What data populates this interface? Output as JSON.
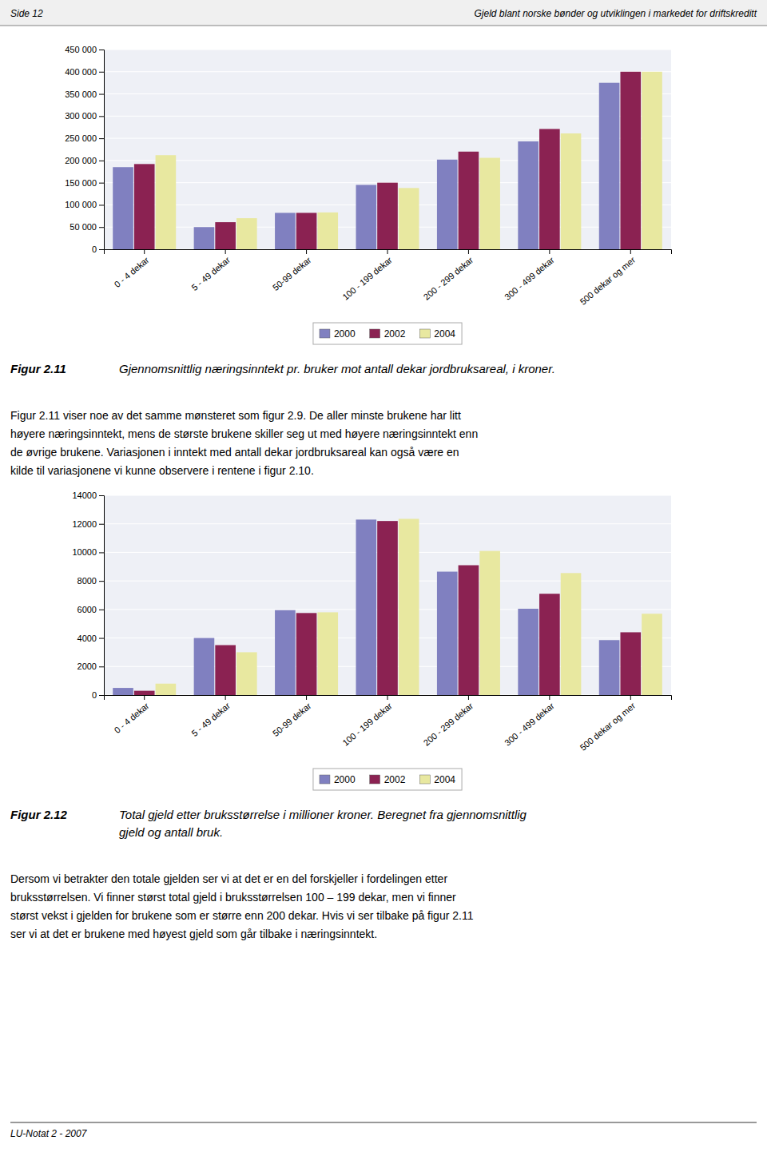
{
  "page": {
    "header_left": "Side 12",
    "header_right": "Gjeld blant norske bønder og utviklingen i markedet for driftskreditt",
    "footer": "LU-Notat 2 - 2007"
  },
  "chart_data": [
    {
      "type": "bar",
      "title": "Figur 2.11",
      "subtitle": [
        "Gjennomsnittlig næringsinntekt pr. bruker mot antall dekar jordbruksareal, i kroner."
      ],
      "annotations": [
        "Figur 2.11 viser noe av det samme mønsteret som figur 2.9. De aller minste brukene har litt",
        "høyere næringsinntekt, mens de største brukene skiller seg ut med høyere næringsinntekt enn",
        "de øvrige brukene. Variasjonen i inntekt med antall dekar jordbruksareal kan også være en",
        "kilde til variasjonene vi kunne observere i rentene i figur 2.10."
      ],
      "categories": [
        "0 - 4 dekar",
        "5 - 49 dekar",
        "50-99 dekar",
        "100 - 199 dekar",
        "200 - 299 dekar",
        "300 - 499 dekar",
        "500 dekar og mer"
      ],
      "series": [
        {
          "name": "2000",
          "color": "#8080c0",
          "values": [
            185000,
            50000,
            82000,
            145000,
            202000,
            243000,
            375000
          ]
        },
        {
          "name": "2002",
          "color": "#8b2252",
          "values": [
            192000,
            61000,
            82000,
            150000,
            220000,
            271000,
            400000
          ]
        },
        {
          "name": "2004",
          "color": "#e8e8a0",
          "values": [
            212000,
            70000,
            83000,
            138000,
            206000,
            261000,
            400000
          ]
        }
      ],
      "ylim": [
        0,
        450000
      ],
      "yticks": [
        0,
        {
          "value": 50000,
          "label": "50 000"
        },
        {
          "value": 100000,
          "label": "100 000"
        },
        {
          "value": 150000,
          "label": "150 000"
        },
        {
          "value": 200000,
          "label": "200 000"
        },
        {
          "value": 250000,
          "label": "250 000"
        },
        {
          "value": 300000,
          "label": "300 000"
        },
        {
          "value": 350000,
          "label": "350 000"
        },
        {
          "value": 400000,
          "label": "400 000"
        },
        {
          "value": 450000,
          "label": "450 000"
        }
      ],
      "grid": true,
      "legend": "bottom"
    },
    {
      "type": "bar",
      "title": "Figur 2.12",
      "subtitle": [
        "Total gjeld etter bruksstørrelse i millioner kroner. Beregnet fra gjennomsnittlig",
        "gjeld og antall bruk."
      ],
      "annotations": [
        "Dersom vi betrakter den totale gjelden ser vi at det er en del forskjeller i fordelingen etter",
        "bruksstørrelsen. Vi finner størst total gjeld i bruksstørrelsen 100 – 199 dekar, men vi finner",
        "størst vekst i gjelden for brukene som er større enn 200 dekar. Hvis vi ser tilbake på figur 2.11",
        "ser vi at det er brukene med høyest gjeld som går tilbake i næringsinntekt."
      ],
      "categories": [
        "0 - 4 dekar",
        "5 - 49 dekar",
        "50-99 dekar",
        "100 - 199 dekar",
        "200 - 299 dekar",
        "300 - 499 dekar",
        "500 dekar og mer"
      ],
      "series": [
        {
          "name": "2000",
          "color": "#8080c0",
          "values": [
            500,
            4000,
            5950,
            12300,
            8650,
            6050,
            3850
          ]
        },
        {
          "name": "2002",
          "color": "#8b2252",
          "values": [
            300,
            3500,
            5750,
            12200,
            9100,
            7100,
            4400
          ]
        },
        {
          "name": "2004",
          "color": "#e8e8a0",
          "values": [
            800,
            3000,
            5800,
            12350,
            10100,
            8550,
            5700
          ]
        }
      ],
      "ylim": [
        0,
        14000
      ],
      "yticks": [
        0,
        2000,
        4000,
        6000,
        8000,
        10000,
        12000,
        14000
      ],
      "grid": true,
      "legend": "bottom"
    }
  ]
}
